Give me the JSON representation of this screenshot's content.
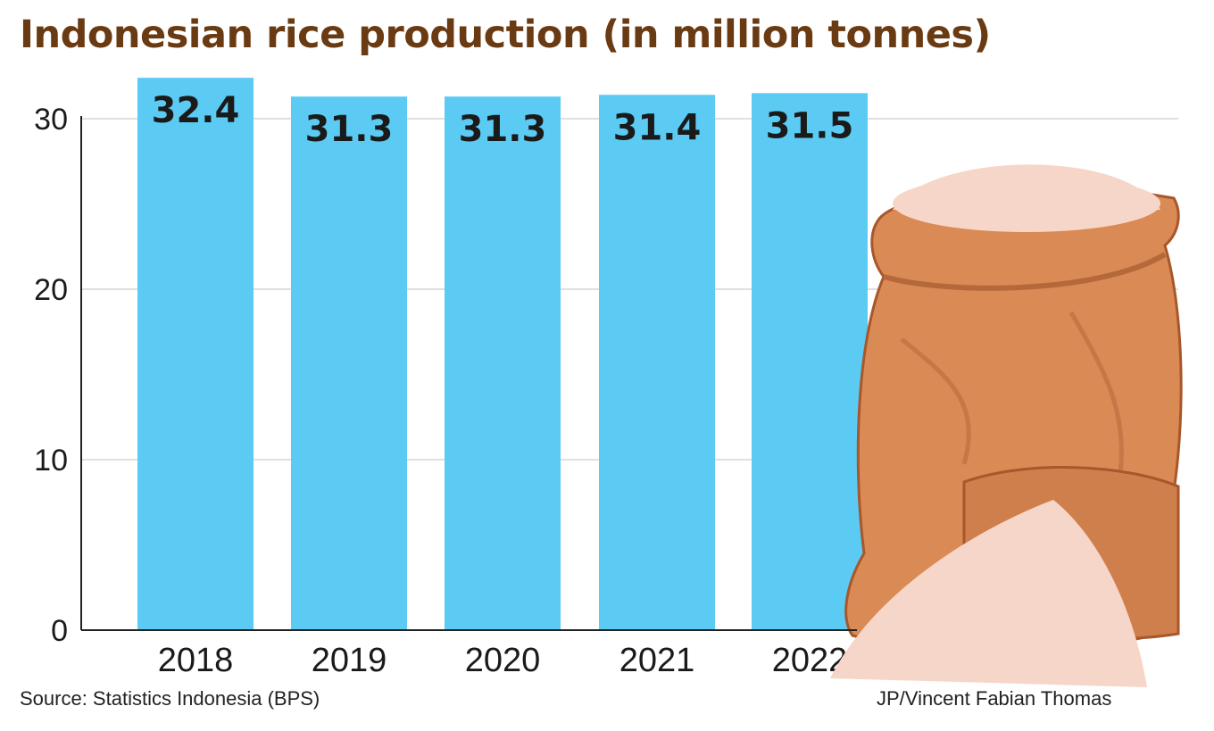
{
  "chart_data": {
    "type": "bar",
    "title": "Indonesian rice production (in million tonnes)",
    "categories": [
      "2018",
      "2019",
      "2020",
      "2021",
      "2022"
    ],
    "values": [
      32.4,
      31.3,
      31.3,
      31.4,
      31.5
    ],
    "data_labels": [
      "32.4",
      "31.3",
      "31.3",
      "31.4",
      "31.5"
    ],
    "yticks": [
      0,
      10,
      20,
      30
    ],
    "ytick_labels": [
      "0",
      "10",
      "20",
      "30"
    ],
    "ylim": [
      0,
      30
    ],
    "xlabel": "",
    "ylabel": "",
    "grid": true,
    "bar_color": "#5ccbf4"
  },
  "source": "Source: Statistics Indonesia (BPS)",
  "credit": "JP/Vincent Fabian Thomas",
  "illustration": "rice-sack-icon",
  "colors": {
    "title": "#6a3b12",
    "bar": "#5ccbf4",
    "sack": "#d98a55",
    "rice": "#f6d6c8"
  }
}
